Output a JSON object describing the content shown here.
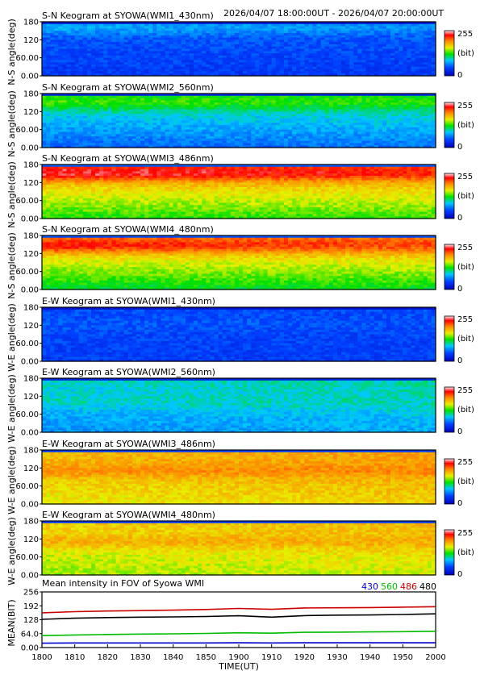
{
  "header": {
    "date_range": "2026/04/07 18:00:00UT - 2026/04/07 20:00:00UT"
  },
  "colorbar": {
    "max_label": "255",
    "unit_label": "(bit)",
    "min_label": "0"
  },
  "chart_data": [
    {
      "type": "heatmap",
      "title": "S-N Keogram at SYOWA(WMI1_430nm)",
      "ylabel": "N-S angle(deg)",
      "yticks": [
        "180",
        "120",
        "60.00",
        "0.00"
      ],
      "ylim": [
        0,
        180
      ],
      "xlim": [
        1800,
        2000
      ],
      "intensity": {
        "base_low": 40,
        "base_high": 55,
        "band_center": 160,
        "band_peak": 25,
        "trend": 0.0
      }
    },
    {
      "type": "heatmap",
      "title": "S-N Keogram at SYOWA(WMI2_560nm)",
      "ylabel": "N-S angle(deg)",
      "yticks": [
        "180",
        "120",
        "60.00",
        "0.00"
      ],
      "ylim": [
        0,
        180
      ],
      "xlim": [
        1800,
        2000
      ],
      "intensity": {
        "base_low": 55,
        "base_high": 110,
        "band_center": 150,
        "band_peak": 30,
        "trend": 0.15
      }
    },
    {
      "type": "heatmap",
      "title": "S-N Keogram at SYOWA(WMI3_486nm)",
      "ylabel": "N-S angle(deg)",
      "yticks": [
        "180",
        "120",
        "60.00",
        "0.00"
      ],
      "ylim": [
        0,
        180
      ],
      "xlim": [
        1800,
        2000
      ],
      "intensity": {
        "base_low": 125,
        "base_high": 200,
        "band_center": 150,
        "band_peak": 50,
        "trend": 0.1
      }
    },
    {
      "type": "heatmap",
      "title": "S-N Keogram at SYOWA(WMI4_480nm)",
      "ylabel": "N-S angle(deg)",
      "yticks": [
        "180",
        "120",
        "60.00",
        "0.00"
      ],
      "ylim": [
        0,
        180
      ],
      "xlim": [
        1800,
        2000
      ],
      "intensity": {
        "base_low": 115,
        "base_high": 195,
        "band_center": 145,
        "band_peak": 45,
        "trend": 0.1
      }
    },
    {
      "type": "heatmap",
      "title": "E-W Keogram at SYOWA(WMI1_430nm)",
      "ylabel": "W-E angle(deg)",
      "yticks": [
        "180",
        "120",
        "60.00",
        "0.00"
      ],
      "ylim": [
        0,
        180
      ],
      "xlim": [
        1800,
        2000
      ],
      "intensity": {
        "base_low": 42,
        "base_high": 48,
        "band_center": 120,
        "band_peak": 6,
        "trend": 0.0
      }
    },
    {
      "type": "heatmap",
      "title": "E-W Keogram at SYOWA(WMI2_560nm)",
      "ylabel": "W-E angle(deg)",
      "yticks": [
        "180",
        "120",
        "60.00",
        "0.00"
      ],
      "ylim": [
        0,
        180
      ],
      "xlim": [
        1800,
        2000
      ],
      "intensity": {
        "base_low": 70,
        "base_high": 95,
        "band_center": 100,
        "band_peak": 10,
        "trend": 0.2
      }
    },
    {
      "type": "heatmap",
      "title": "E-W Keogram at SYOWA(WMI3_486nm)",
      "ylabel": "W-E angle(deg)",
      "yticks": [
        "180",
        "120",
        "60.00",
        "0.00"
      ],
      "ylim": [
        0,
        180
      ],
      "xlim": [
        1800,
        2000
      ],
      "intensity": {
        "base_low": 160,
        "base_high": 180,
        "band_center": 110,
        "band_peak": 20,
        "trend": 0.25
      }
    },
    {
      "type": "heatmap",
      "title": "E-W Keogram at SYOWA(WMI4_480nm)",
      "ylabel": "W-E angle(deg)",
      "yticks": [
        "180",
        "120",
        "60.00",
        "0.00"
      ],
      "ylim": [
        0,
        180
      ],
      "xlim": [
        1800,
        2000
      ],
      "intensity": {
        "base_low": 145,
        "base_high": 170,
        "band_center": 110,
        "band_peak": 20,
        "trend": 0.25
      }
    },
    {
      "type": "line",
      "title": "Mean intensity in FOV of Syowa WMI",
      "ylabel": "MEAN(BIT)",
      "xlabel": "TIME(UT)",
      "yticks": [
        "256",
        "192",
        "128",
        "64.0",
        "0.00"
      ],
      "ylim": [
        0,
        256
      ],
      "xlim": [
        1800,
        2000
      ],
      "xticks": [
        "1800",
        "1810",
        "1820",
        "1830",
        "1840",
        "1850",
        "1900",
        "1910",
        "1920",
        "1930",
        "1940",
        "1950",
        "2000"
      ],
      "x": [
        0,
        10,
        20,
        30,
        40,
        50,
        60,
        70,
        80,
        90,
        100,
        110,
        120
      ],
      "series": [
        {
          "name": "430",
          "color": "#0000cc",
          "values": [
            20,
            21,
            21,
            21,
            21,
            21,
            22,
            21,
            22,
            22,
            22,
            22,
            22
          ]
        },
        {
          "name": "560",
          "color": "#00bb00",
          "values": [
            55,
            58,
            60,
            62,
            63,
            65,
            68,
            66,
            70,
            71,
            72,
            73,
            75
          ]
        },
        {
          "name": "486",
          "color": "#cc0000",
          "values": [
            160,
            165,
            168,
            170,
            172,
            175,
            180,
            176,
            182,
            183,
            184,
            186,
            188
          ]
        },
        {
          "name": "480",
          "color": "#000000",
          "values": [
            130,
            135,
            138,
            140,
            141,
            143,
            146,
            140,
            147,
            149,
            150,
            152,
            155
          ]
        }
      ]
    }
  ]
}
